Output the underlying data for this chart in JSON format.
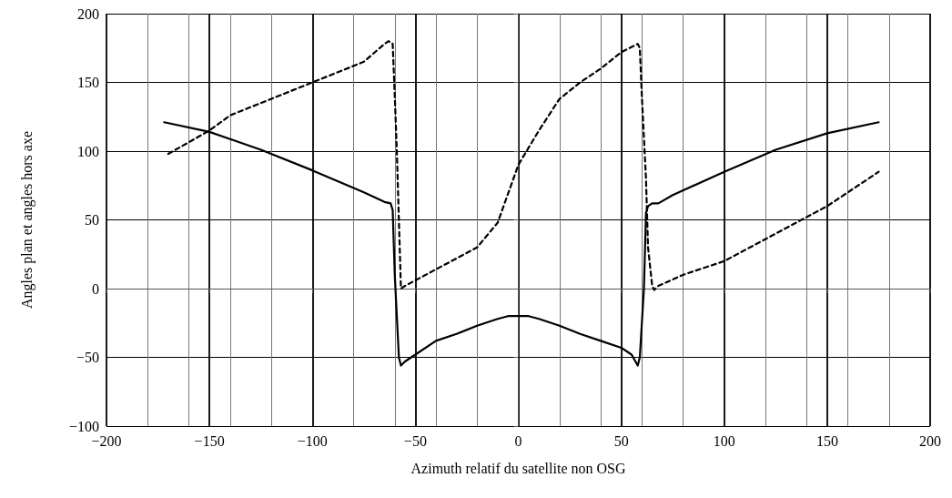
{
  "chart_data": {
    "type": "line",
    "xlabel": "Azimuth relatif du satellite non OSG",
    "ylabel": "Angles plan et angles hors axe",
    "xlim": [
      -200,
      200
    ],
    "xticks": [
      {
        "value": -200,
        "label": "−200"
      },
      {
        "value": -150,
        "label": "−150"
      },
      {
        "value": -100,
        "label": "−100"
      },
      {
        "value": -50,
        "label": "−50"
      },
      0,
      50,
      100,
      150,
      200
    ],
    "ylim": [
      -100,
      200
    ],
    "yticks": [
      {
        "value": -100,
        "label": "−100"
      },
      {
        "value": -50,
        "label": "−50"
      },
      0,
      50,
      100,
      150,
      200
    ],
    "grid": true,
    "marker": "none",
    "series": [
      {
        "color": "#000000",
        "line_style": "solid",
        "x": [
          -172,
          -150,
          -125,
          -100,
          -75,
          -65,
          -62,
          -61,
          -60,
          -58,
          -57,
          -55,
          -50,
          -40,
          -30,
          -20,
          -10,
          -5,
          5,
          10,
          20,
          30,
          40,
          50,
          55,
          58,
          59,
          61,
          62,
          63,
          65,
          68,
          75,
          100,
          125,
          150,
          175
        ],
        "values": [
          121,
          114,
          101,
          86,
          70,
          63,
          62,
          57,
          10,
          -50,
          -56,
          -53,
          -48,
          -38,
          -33,
          -27,
          -22,
          -20,
          -20,
          -22,
          -27,
          -33,
          -38,
          -43,
          -48,
          -56,
          -50,
          0,
          55,
          60,
          62,
          62,
          68,
          85,
          101,
          113,
          121
        ]
      },
      {
        "color": "#000000",
        "line_style": "dashed",
        "x": [
          -170,
          -150,
          -140,
          -125,
          -100,
          -75,
          -65,
          -63,
          -61,
          -60,
          -59,
          -58,
          -57,
          -55,
          -40,
          -30,
          -20,
          -10,
          0,
          10,
          20,
          30,
          40,
          50,
          58,
          59,
          60,
          62,
          63,
          65,
          66,
          68,
          80,
          100,
          125,
          150,
          175
        ],
        "values": [
          98,
          115,
          126,
          135,
          150,
          165,
          178,
          180,
          178,
          140,
          100,
          50,
          0,
          2,
          14,
          22,
          30,
          48,
          90,
          115,
          138,
          150,
          160,
          172,
          178,
          175,
          140,
          80,
          30,
          2,
          -1,
          2,
          10,
          20,
          40,
          60,
          85
        ]
      }
    ]
  }
}
